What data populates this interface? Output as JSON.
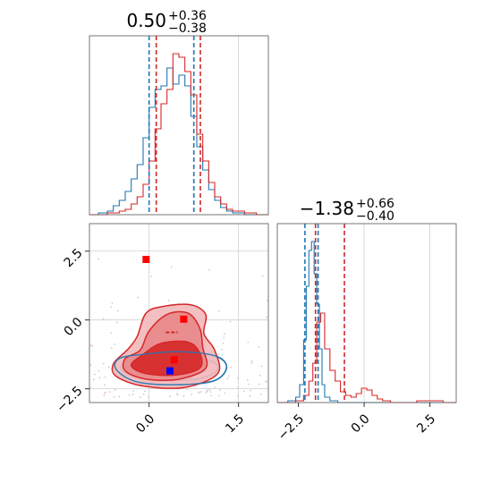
{
  "colors": {
    "blue": "#1f77b4",
    "red": "#d62728",
    "red_fill_outer": "#f2b8ba",
    "red_fill_mid": "#e8878a",
    "red_fill_inner": "#d62728",
    "marker_blue": "#0000ff",
    "marker_red": "#ff0000"
  },
  "chart_data": [
    {
      "panel": "top-left",
      "type": "histogram",
      "title": {
        "base": "0.50",
        "sup": "+0.36",
        "sub": "−0.38"
      },
      "xlim": [
        -1.0,
        2.0
      ],
      "ylim": [
        0,
        1.0
      ],
      "grid": true,
      "vlines_grid": [
        1.5
      ],
      "quantiles": {
        "blue": [
          0.0,
          0.75
        ],
        "red": [
          0.12,
          0.86
        ]
      },
      "series": [
        {
          "name": "",
          "color": "blue",
          "bin_edges": [
            -1.0,
            -0.85,
            -0.7,
            -0.6,
            -0.5,
            -0.4,
            -0.3,
            -0.2,
            -0.1,
            0.0,
            0.1,
            0.2,
            0.3,
            0.4,
            0.5,
            0.6,
            0.7,
            0.8,
            0.9,
            1.0,
            1.1,
            1.2,
            1.3,
            1.4,
            1.6,
            1.8,
            2.0
          ],
          "counts": [
            0.0,
            0.01,
            0.02,
            0.05,
            0.08,
            0.13,
            0.2,
            0.28,
            0.43,
            0.6,
            0.7,
            0.72,
            0.82,
            0.73,
            0.78,
            0.72,
            0.55,
            0.38,
            0.25,
            0.14,
            0.08,
            0.04,
            0.02,
            0.01,
            0.0,
            0.0
          ]
        },
        {
          "name": "",
          "color": "red",
          "bin_edges": [
            -1.0,
            -0.85,
            -0.7,
            -0.6,
            -0.5,
            -0.4,
            -0.3,
            -0.2,
            -0.1,
            0.0,
            0.1,
            0.2,
            0.3,
            0.4,
            0.5,
            0.6,
            0.7,
            0.8,
            0.9,
            1.0,
            1.1,
            1.2,
            1.3,
            1.4,
            1.6,
            1.8,
            2.0
          ],
          "counts": [
            0.0,
            0.0,
            0.01,
            0.01,
            0.02,
            0.03,
            0.06,
            0.1,
            0.17,
            0.3,
            0.48,
            0.62,
            0.7,
            0.9,
            0.88,
            0.8,
            0.67,
            0.45,
            0.3,
            0.18,
            0.1,
            0.06,
            0.03,
            0.02,
            0.01,
            0.0
          ]
        }
      ]
    },
    {
      "panel": "bottom-left",
      "type": "contour",
      "xlim": [
        -1.0,
        2.0
      ],
      "ylim": [
        -3.0,
        3.5
      ],
      "xticks": [
        0.0,
        1.5
      ],
      "xticklabels": [
        "0.0",
        "1.5"
      ],
      "yticks": [
        -2.5,
        0.0,
        2.5
      ],
      "yticklabels": [
        "−2.5",
        "0.0",
        "2.5"
      ],
      "grid": true,
      "red_levels": [
        {
          "level": "outer",
          "points": [
            [
              -0.35,
              -1.05
            ],
            [
              -0.2,
              -0.6
            ],
            [
              -0.05,
              0.25
            ],
            [
              0.25,
              0.5
            ],
            [
              0.7,
              0.55
            ],
            [
              0.95,
              0.2
            ],
            [
              0.92,
              -0.5
            ],
            [
              1.1,
              -1.1
            ],
            [
              1.15,
              -1.95
            ],
            [
              0.6,
              -2.45
            ],
            [
              -0.1,
              -2.4
            ],
            [
              -0.55,
              -2.05
            ],
            [
              -0.6,
              -1.6
            ]
          ]
        },
        {
          "level": "mid",
          "points": [
            [
              -0.15,
              -1.1
            ],
            [
              0.0,
              -0.4
            ],
            [
              0.3,
              0.2
            ],
            [
              0.65,
              0.25
            ],
            [
              0.85,
              -0.3
            ],
            [
              0.9,
              -1.0
            ],
            [
              0.95,
              -1.75
            ],
            [
              0.5,
              -2.15
            ],
            [
              -0.05,
              -2.15
            ],
            [
              -0.4,
              -1.85
            ],
            [
              -0.4,
              -1.4
            ]
          ]
        },
        {
          "level": "inner",
          "points": [
            [
              -0.1,
              -1.25
            ],
            [
              0.2,
              -0.85
            ],
            [
              0.65,
              -0.8
            ],
            [
              0.85,
              -1.2
            ],
            [
              0.85,
              -1.75
            ],
            [
              0.45,
              -2.0
            ],
            [
              -0.05,
              -1.95
            ],
            [
              -0.3,
              -1.65
            ]
          ]
        }
      ],
      "blue_levels": [
        {
          "level": "outer",
          "points": [
            [
              -0.5,
              -1.4
            ],
            [
              -0.1,
              -1.25
            ],
            [
              0.5,
              -1.15
            ],
            [
              1.1,
              -1.3
            ],
            [
              1.3,
              -1.7
            ],
            [
              1.1,
              -2.2
            ],
            [
              0.5,
              -2.35
            ],
            [
              -0.2,
              -2.25
            ],
            [
              -0.55,
              -1.8
            ]
          ]
        },
        {
          "level": "mid",
          "points": [
            [
              -0.4,
              -1.55
            ],
            [
              0.0,
              -1.45
            ],
            [
              0.6,
              -1.35
            ],
            [
              1.05,
              -1.5
            ],
            [
              1.15,
              -1.8
            ],
            [
              0.9,
              -2.1
            ],
            [
              0.4,
              -2.2
            ],
            [
              -0.15,
              -2.1
            ],
            [
              -0.45,
              -1.85
            ]
          ]
        },
        {
          "level": "inner",
          "points": [
            [
              -0.25,
              -1.7
            ],
            [
              0.2,
              -1.6
            ],
            [
              0.7,
              -1.6
            ],
            [
              0.95,
              -1.8
            ],
            [
              0.75,
              -2.0
            ],
            [
              0.3,
              -2.05
            ],
            [
              -0.15,
              -1.95
            ]
          ]
        }
      ],
      "markers": [
        {
          "color": "marker_red",
          "x": -0.05,
          "y": 2.2
        },
        {
          "color": "marker_red",
          "x": 0.58,
          "y": 0.03
        },
        {
          "color": "marker_red",
          "x": 0.42,
          "y": -1.45
        },
        {
          "color": "marker_blue",
          "x": 0.35,
          "y": -1.85
        }
      ],
      "dashes": [
        {
          "x0": 0.28,
          "x1": 0.48,
          "y": -0.45
        }
      ]
    },
    {
      "panel": "bottom-right",
      "type": "histogram",
      "title": {
        "base": "−1.38",
        "sup": "+0.66",
        "sub": "−0.40"
      },
      "xlim": [
        -3.3,
        3.5
      ],
      "ylim": [
        0,
        1.0
      ],
      "xticks": [
        -2.5,
        0.0,
        2.5
      ],
      "xticklabels": [
        "−2.5",
        "0.0",
        "2.5"
      ],
      "grid": true,
      "vlines_grid": [
        0.0,
        2.5
      ],
      "quantiles": {
        "blue": [
          -2.25,
          -1.75
        ],
        "red": [
          -1.85,
          -0.75
        ]
      },
      "series": [
        {
          "name": "",
          "color": "blue",
          "bin_edges": [
            -3.3,
            -2.9,
            -2.6,
            -2.45,
            -2.3,
            -2.2,
            -2.1,
            -2.0,
            -1.9,
            -1.8,
            -1.7,
            -1.6,
            -1.5,
            -1.3,
            -1.0,
            3.5
          ],
          "counts": [
            0.0,
            0.01,
            0.03,
            0.1,
            0.35,
            0.65,
            0.85,
            0.9,
            0.72,
            0.55,
            0.3,
            0.1,
            0.03,
            0.01,
            0.0
          ]
        },
        {
          "name": "",
          "color": "red",
          "bin_edges": [
            -3.3,
            -2.6,
            -2.3,
            -2.1,
            -1.95,
            -1.8,
            -1.65,
            -1.5,
            -1.3,
            -1.1,
            -0.9,
            -0.7,
            -0.5,
            -0.3,
            -0.1,
            0.1,
            0.3,
            0.5,
            0.7,
            1.0,
            2.0,
            3.0,
            3.5
          ],
          "counts": [
            0.0,
            0.01,
            0.04,
            0.12,
            0.22,
            0.45,
            0.5,
            0.3,
            0.18,
            0.12,
            0.06,
            0.04,
            0.03,
            0.05,
            0.08,
            0.07,
            0.04,
            0.02,
            0.01,
            0.0,
            0.01,
            0.0
          ]
        }
      ]
    }
  ]
}
